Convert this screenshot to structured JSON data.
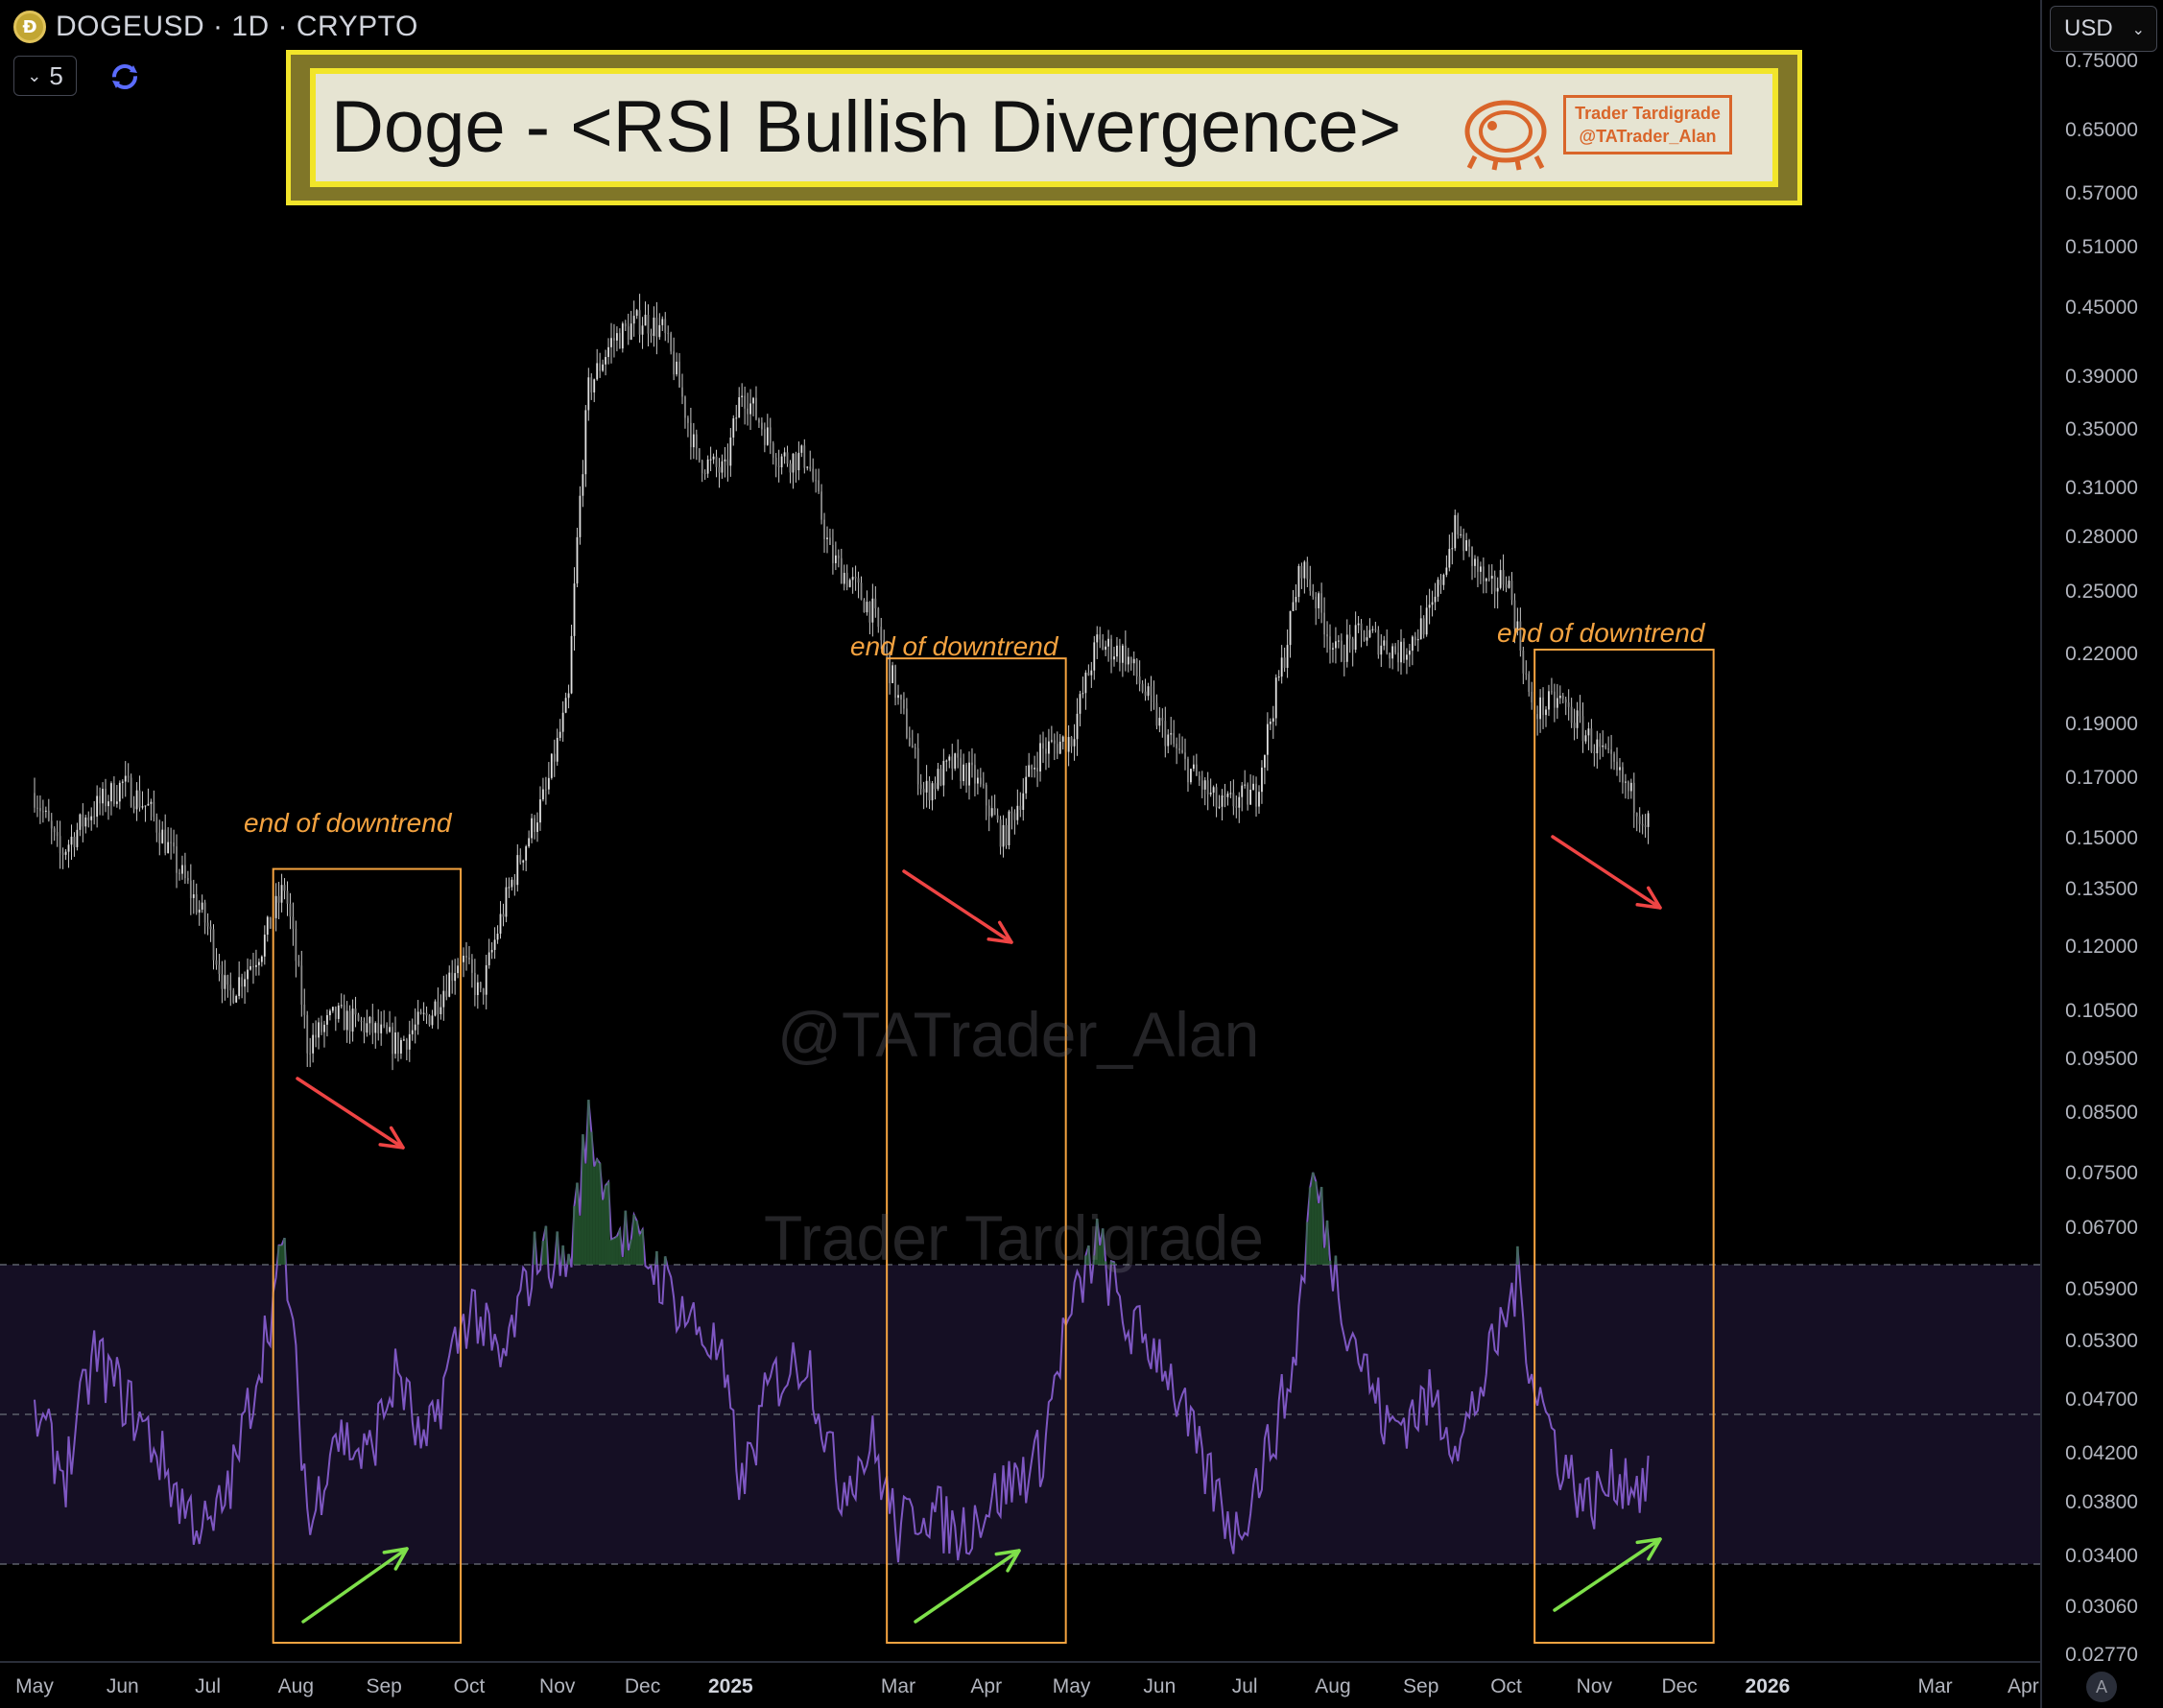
{
  "symbol": {
    "icon": "doge-coin-icon",
    "label": "DOGEUSD · 1D · CRYPTO"
  },
  "toolbar": {
    "interval_value": "5",
    "interval_chevron": "⌄",
    "sync_icon": "sync-icon",
    "currency_label": "USD",
    "currency_chevron": "⌄",
    "corner_label": "A"
  },
  "banner": {
    "title": "Doge - <RSI Bullish Divergence>",
    "logo_line1": "Trader Tardigrade",
    "logo_line2": "@TATrader_Alan"
  },
  "watermarks": {
    "primary": "@TATrader_Alan",
    "secondary": "Trader Tardigrade"
  },
  "annotations": {
    "box1": "end of downtrend",
    "box2": "end of downtrend",
    "box3": "end of downtrend"
  },
  "colors": {
    "background": "#000000",
    "candles": "#c8c8c8",
    "rsi_line": "#7e57c2",
    "rsi_band": "#150f24",
    "box_outline": "#f5a340",
    "down_arrow": "#ef4444",
    "up_arrow": "#7ee04a",
    "banner_border": "#f2e52a"
  },
  "chart_data": [
    {
      "type": "line",
      "price_scale": "log",
      "series": [
        {
          "x": [
            "2024-05-01",
            "2024-05-10",
            "2024-05-20",
            "2024-06-01",
            "2024-06-10",
            "2024-06-20",
            "2024-07-01",
            "2024-07-08",
            "2024-07-20",
            "2024-07-28",
            "2024-08-05",
            "2024-08-15",
            "2024-08-25",
            "2024-09-06",
            "2024-09-18",
            "2024-09-28",
            "2024-10-05",
            "2024-10-15",
            "2024-10-28",
            "2024-11-05",
            "2024-11-12",
            "2024-11-20",
            "2024-12-01",
            "2024-12-08",
            "2024-12-12",
            "2024-12-20",
            "2024-12-30",
            "2025-01-05",
            "2025-01-18",
            "2025-01-28",
            "2025-02-05",
            "2025-02-20",
            "2025-03-01",
            "2025-03-10",
            "2025-03-20",
            "2025-03-28",
            "2025-04-07",
            "2025-04-20",
            "2025-05-01",
            "2025-05-10",
            "2025-05-20",
            "2025-06-01",
            "2025-06-10",
            "2025-06-22",
            "2025-07-05",
            "2025-07-15",
            "2025-07-21",
            "2025-08-02",
            "2025-08-12",
            "2025-08-25",
            "2025-09-05",
            "2025-09-13",
            "2025-09-25",
            "2025-10-01",
            "2025-10-10",
            "2025-10-20",
            "2025-10-30",
            "2025-11-10",
            "2025-11-20"
          ],
          "values": [
            0.165,
            0.145,
            0.158,
            0.168,
            0.16,
            0.142,
            0.125,
            0.108,
            0.12,
            0.136,
            0.098,
            0.104,
            0.102,
            0.098,
            0.105,
            0.118,
            0.108,
            0.135,
            0.165,
            0.2,
            0.38,
            0.42,
            0.44,
            0.43,
            0.4,
            0.33,
            0.32,
            0.38,
            0.33,
            0.33,
            0.27,
            0.24,
            0.2,
            0.165,
            0.175,
            0.17,
            0.15,
            0.18,
            0.185,
            0.225,
            0.22,
            0.19,
            0.175,
            0.16,
            0.165,
            0.22,
            0.265,
            0.22,
            0.23,
            0.22,
            0.24,
            0.285,
            0.25,
            0.26,
            0.195,
            0.2,
            0.185,
            0.17,
            0.155
          ]
        }
      ],
      "y_ticks": [
        "0.75000",
        "0.65000",
        "0.57000",
        "0.51000",
        "0.45000",
        "0.39000",
        "0.35000",
        "0.31000",
        "0.28000",
        "0.25000",
        "0.22000",
        "0.19000",
        "0.17000",
        "0.15000",
        "0.13500",
        "0.12000",
        "0.10500",
        "0.09500",
        "0.08500",
        "0.07500",
        "0.06700",
        "0.05900",
        "0.05300",
        "0.04700",
        "0.04200",
        "0.03800",
        "0.03400",
        "0.03060",
        "0.02770"
      ],
      "x_ticks": [
        "May",
        "Jun",
        "Jul",
        "Aug",
        "Sep",
        "Oct",
        "Nov",
        "Dec",
        "2025",
        "Mar",
        "Apr",
        "May",
        "Jun",
        "Jul",
        "Aug",
        "Sep",
        "Oct",
        "Nov",
        "Dec",
        "2026",
        "Mar",
        "Apr"
      ]
    },
    {
      "type": "line",
      "series": [
        {
          "x": [
            "2024-05-01",
            "2024-05-12",
            "2024-05-22",
            "2024-06-02",
            "2024-06-12",
            "2024-06-22",
            "2024-07-02",
            "2024-07-10",
            "2024-07-22",
            "2024-07-28",
            "2024-08-06",
            "2024-08-14",
            "2024-08-26",
            "2024-09-06",
            "2024-09-15",
            "2024-09-25",
            "2024-10-02",
            "2024-10-12",
            "2024-10-25",
            "2024-11-05",
            "2024-11-12",
            "2024-11-22",
            "2024-12-05",
            "2024-12-15",
            "2024-12-28",
            "2025-01-05",
            "2025-01-15",
            "2025-01-28",
            "2025-02-08",
            "2025-02-20",
            "2025-03-01",
            "2025-03-10",
            "2025-03-22",
            "2025-04-07",
            "2025-04-20",
            "2025-04-28",
            "2025-05-10",
            "2025-05-20",
            "2025-06-02",
            "2025-06-15",
            "2025-06-28",
            "2025-07-10",
            "2025-07-18",
            "2025-07-25",
            "2025-08-05",
            "2025-08-20",
            "2025-09-05",
            "2025-09-15",
            "2025-09-28",
            "2025-10-05",
            "2025-10-10",
            "2025-10-20",
            "2025-10-30",
            "2025-11-10",
            "2025-11-20"
          ],
          "values": [
            50,
            42,
            58,
            52,
            46,
            38,
            34,
            42,
            62,
            72,
            34,
            48,
            44,
            56,
            44,
            58,
            65,
            56,
            72,
            70,
            89,
            75,
            70,
            64,
            58,
            40,
            54,
            58,
            40,
            46,
            34,
            38,
            34,
            40,
            44,
            60,
            73,
            62,
            58,
            44,
            34,
            46,
            56,
            82,
            64,
            48,
            52,
            46,
            60,
            68,
            56,
            44,
            38,
            42,
            40
          ]
        }
      ],
      "levels": [
        30,
        50,
        70
      ]
    }
  ]
}
